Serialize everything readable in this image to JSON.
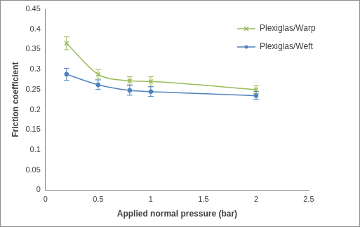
{
  "chart_data": {
    "type": "line",
    "xlabel": "Applied normal pressure (bar)",
    "ylabel": "Friction coefficient",
    "x": [
      0.2,
      0.5,
      0.8,
      1,
      2
    ],
    "series": [
      {
        "name": "Plexiglas/Warp",
        "color": "#9bbb59",
        "marker": "x",
        "line_style": "solid",
        "values": [
          0.365,
          0.288,
          0.272,
          0.27,
          0.25
        ],
        "errors": [
          0.016,
          0.012,
          0.01,
          0.012,
          0.01
        ]
      },
      {
        "name": "Plexiglas/Weft",
        "color": "#4f81bd",
        "marker": "circle",
        "line_style": "solid",
        "values": [
          0.288,
          0.262,
          0.248,
          0.245,
          0.235
        ],
        "errors": [
          0.015,
          0.012,
          0.012,
          0.012,
          0.01
        ]
      }
    ],
    "xlim": [
      0,
      2.5
    ],
    "xticks": [
      0,
      0.5,
      1,
      1.5,
      2,
      2.5
    ],
    "ylim": [
      0,
      0.45
    ],
    "yticks": [
      0,
      0.05,
      0.1,
      0.15,
      0.2,
      0.25,
      0.3,
      0.35,
      0.4,
      0.45
    ],
    "grid": false,
    "legend": "upper right"
  }
}
